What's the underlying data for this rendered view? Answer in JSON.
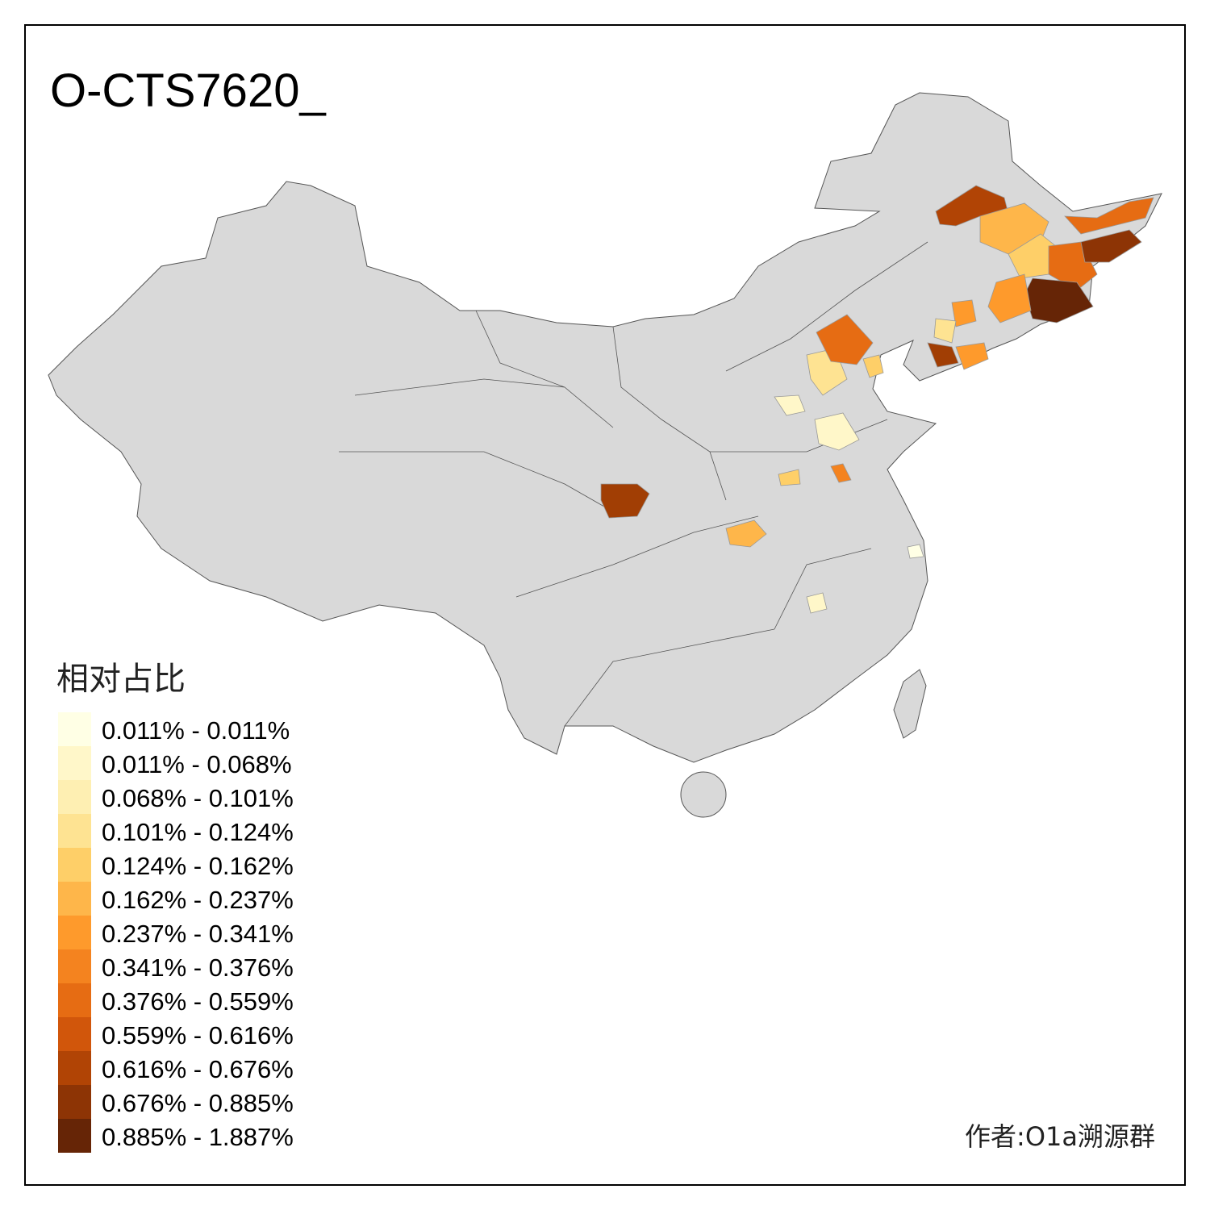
{
  "title": "O-CTS7620_",
  "legend": {
    "title": "相对占比",
    "items": [
      {
        "label": "0.011% - 0.011%",
        "color": "#ffffe5"
      },
      {
        "label": "0.011% - 0.068%",
        "color": "#fff7c9"
      },
      {
        "label": "0.068% - 0.101%",
        "color": "#feefb2"
      },
      {
        "label": "0.101% - 0.124%",
        "color": "#fee392"
      },
      {
        "label": "0.124% - 0.162%",
        "color": "#fecf68"
      },
      {
        "label": "0.162% - 0.237%",
        "color": "#feb64a"
      },
      {
        "label": "0.237% - 0.341%",
        "color": "#fe9a2c"
      },
      {
        "label": "0.341% - 0.376%",
        "color": "#f4831f"
      },
      {
        "label": "0.376% - 0.559%",
        "color": "#e66c13"
      },
      {
        "label": "0.559% - 0.616%",
        "color": "#d1560b"
      },
      {
        "label": "0.616% - 0.676%",
        "color": "#b14405"
      },
      {
        "label": "0.676% - 0.885%",
        "color": "#8d3405"
      },
      {
        "label": "0.885% - 1.887%",
        "color": "#662506"
      }
    ]
  },
  "credit": "作者:O1a溯源群"
}
